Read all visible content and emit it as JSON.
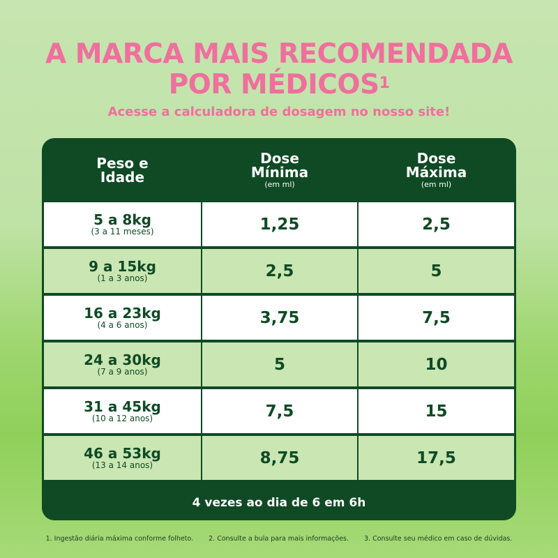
{
  "headline": {
    "line1": "A MARCA MAIS RECOMENDADA",
    "line2": "POR MÉDICOS",
    "footnote_mark": "1",
    "subtitle": "Acesse a calculadora de dosagem no nosso site!"
  },
  "table": {
    "headers": [
      {
        "title": "Peso e\nIdade",
        "unit": ""
      },
      {
        "title": "Dose\nMínima",
        "unit": "(em ml)"
      },
      {
        "title": "Dose\nMáxima",
        "unit": "(em ml)"
      }
    ],
    "rows": [
      {
        "weight": "5 a 8kg",
        "age": "(3 a 11 meses)",
        "min": "1,25",
        "max": "2,5"
      },
      {
        "weight": "9 a 15kg",
        "age": "(1 a 3 anos)",
        "min": "2,5",
        "max": "5"
      },
      {
        "weight": "16 a 23kg",
        "age": "(4 a 6 anos)",
        "min": "3,75",
        "max": "7,5"
      },
      {
        "weight": "24 a 30kg",
        "age": "(7 a 9 anos)",
        "min": "5",
        "max": "10"
      },
      {
        "weight": "31 a 45kg",
        "age": "(10 a 12 anos)",
        "min": "7,5",
        "max": "15"
      },
      {
        "weight": "46 a 53kg",
        "age": "(13 a 14 anos)",
        "min": "8,75",
        "max": "17,5"
      }
    ],
    "footer": "4 vezes ao dia de 6 em 6h"
  },
  "notes": [
    "1.  Ingestão diária máxima conforme folheto.",
    "2.  Consulte a bula para mais informações.",
    "3.  Consulte seu médico em caso de dúvidas."
  ],
  "colors": {
    "brand_pink": "#ef6f9d",
    "dark_green": "#0f4a25",
    "row_tint": "#cae6b3"
  }
}
